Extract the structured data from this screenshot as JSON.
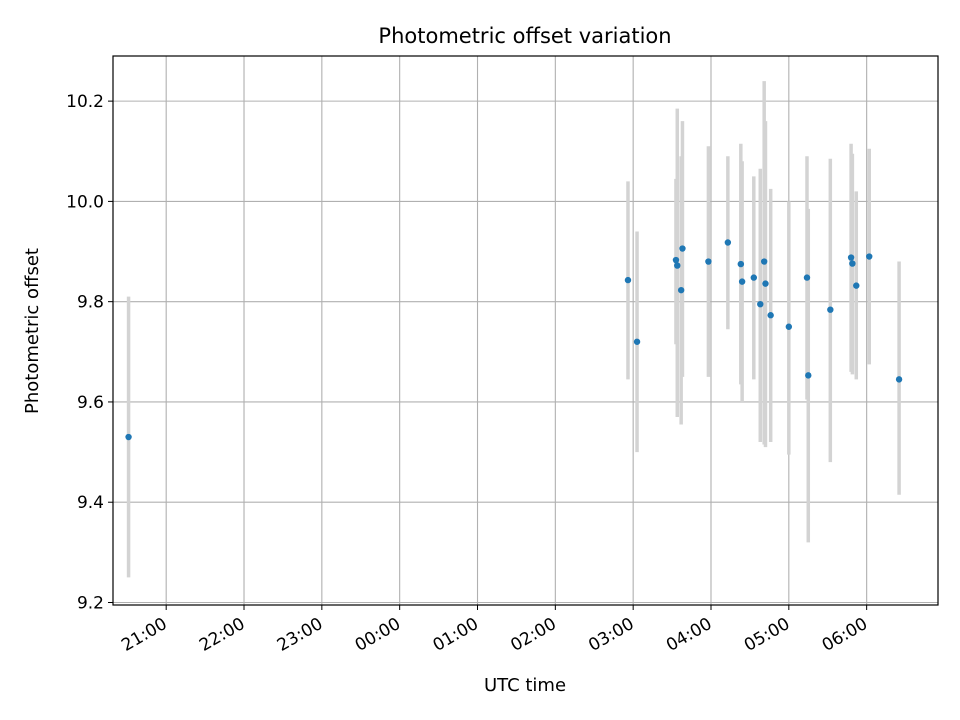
{
  "chart_data": {
    "type": "scatter",
    "title": "Photometric offset variation",
    "xlabel": "UTC time",
    "ylabel": "Photometric offset",
    "ylim": [
      9.195,
      10.29
    ],
    "xlim": [
      "20:19",
      "06:55"
    ],
    "grid": true,
    "x_ticks": [
      "21:00",
      "22:00",
      "23:00",
      "00:00",
      "01:00",
      "02:00",
      "03:00",
      "04:00",
      "05:00",
      "06:00"
    ],
    "y_ticks": [
      "9.2",
      "9.4",
      "9.6",
      "9.8",
      "10.0",
      "10.2"
    ],
    "colors": {
      "point": "#1f77b4",
      "errorbar": "#d3d3d3",
      "grid": "#b0b0b0"
    },
    "points": [
      {
        "t": "20:31",
        "y": 9.53,
        "lo": 9.25,
        "hi": 9.81
      },
      {
        "t": "02:56",
        "y": 9.843,
        "lo": 9.645,
        "hi": 10.04
      },
      {
        "t": "03:03",
        "y": 9.72,
        "lo": 9.5,
        "hi": 9.94
      },
      {
        "t": "03:33",
        "y": 9.883,
        "lo": 9.715,
        "hi": 10.045
      },
      {
        "t": "03:34",
        "y": 9.872,
        "lo": 9.57,
        "hi": 10.185
      },
      {
        "t": "03:37",
        "y": 9.823,
        "lo": 9.555,
        "hi": 10.09
      },
      {
        "t": "03:38",
        "y": 9.906,
        "lo": 9.65,
        "hi": 10.16
      },
      {
        "t": "03:58",
        "y": 9.88,
        "lo": 9.65,
        "hi": 10.11
      },
      {
        "t": "04:13",
        "y": 9.918,
        "lo": 9.745,
        "hi": 10.09
      },
      {
        "t": "04:23",
        "y": 9.875,
        "lo": 9.635,
        "hi": 10.115
      },
      {
        "t": "04:24",
        "y": 9.84,
        "lo": 9.6,
        "hi": 10.08
      },
      {
        "t": "04:33",
        "y": 9.848,
        "lo": 9.645,
        "hi": 10.05
      },
      {
        "t": "04:38",
        "y": 9.795,
        "lo": 9.52,
        "hi": 10.065
      },
      {
        "t": "04:41",
        "y": 9.88,
        "lo": 9.515,
        "hi": 10.24
      },
      {
        "t": "04:42",
        "y": 9.836,
        "lo": 9.51,
        "hi": 10.16
      },
      {
        "t": "04:46",
        "y": 9.773,
        "lo": 9.52,
        "hi": 10.025
      },
      {
        "t": "05:00",
        "y": 9.75,
        "lo": 9.495,
        "hi": 10.0
      },
      {
        "t": "05:14",
        "y": 9.848,
        "lo": 9.605,
        "hi": 10.09
      },
      {
        "t": "05:15",
        "y": 9.653,
        "lo": 9.32,
        "hi": 9.985
      },
      {
        "t": "05:32",
        "y": 9.784,
        "lo": 9.48,
        "hi": 10.085
      },
      {
        "t": "05:48",
        "y": 9.888,
        "lo": 9.66,
        "hi": 10.115
      },
      {
        "t": "05:49",
        "y": 9.876,
        "lo": 9.655,
        "hi": 10.095
      },
      {
        "t": "05:52",
        "y": 9.832,
        "lo": 9.645,
        "hi": 10.02
      },
      {
        "t": "06:02",
        "y": 9.89,
        "lo": 9.675,
        "hi": 10.105
      },
      {
        "t": "06:25",
        "y": 9.645,
        "lo": 9.415,
        "hi": 9.88
      }
    ]
  }
}
